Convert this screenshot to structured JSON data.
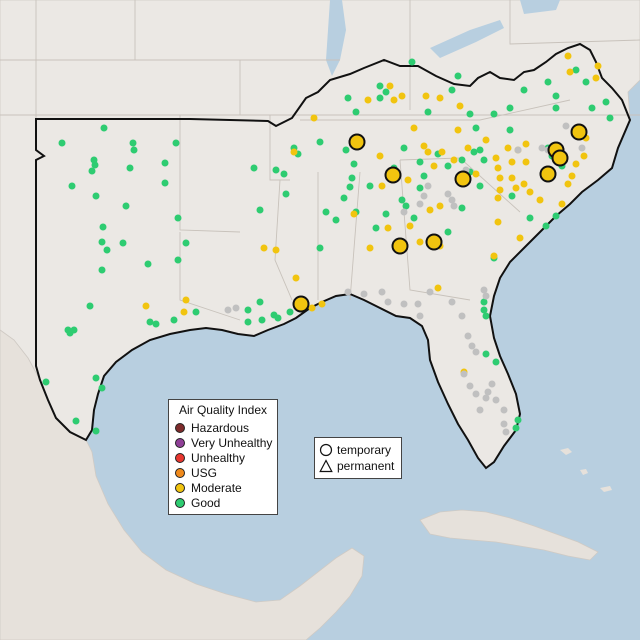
{
  "colors": {
    "ocean": "#b8cfe0",
    "land": "#ebe8e4",
    "hazardous": "#7e2b2b",
    "very_unhealthy": "#8f3f97",
    "unhealthy": "#e8362f",
    "usg": "#f08a1c",
    "moderate": "#f1c40f",
    "good": "#2ecc71",
    "nodata": "#c0c0c0"
  },
  "legend": {
    "title": "Air Quality Index",
    "items": [
      {
        "label": "Hazardous",
        "color": "#7e2b2b"
      },
      {
        "label": "Very Unhealthy",
        "color": "#8f3f97"
      },
      {
        "label": "Unhealthy",
        "color": "#e8362f"
      },
      {
        "label": "USG",
        "color": "#f08a1c"
      },
      {
        "label": "Moderate",
        "color": "#f1c40f"
      },
      {
        "label": "Good",
        "color": "#2ecc71"
      }
    ]
  },
  "site_legend": {
    "temporary": "temporary",
    "permanent": "permanent"
  }
}
